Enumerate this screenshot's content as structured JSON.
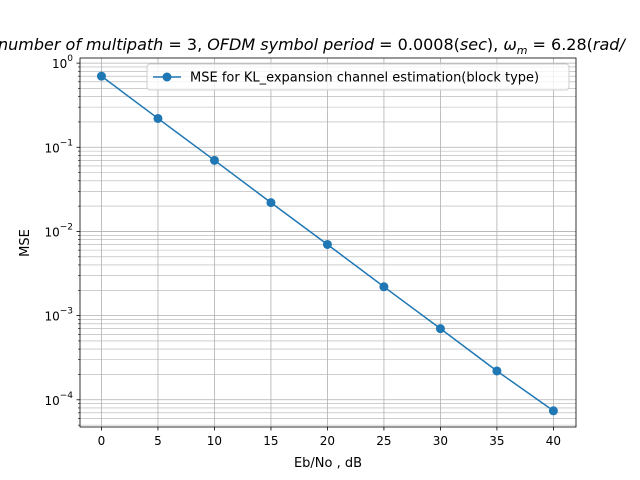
{
  "chart_data": {
    "type": "line",
    "title_parts": {
      "p1": "number of multipath",
      "p2": " = 3, ",
      "p3": "OFDM symbol period",
      "p4": " = 0.0008(",
      "p5": "sec",
      "p6": "), ",
      "p7_omega": "ω",
      "p8_sub": "m",
      "p9": " = 6.28(",
      "p10": "rad",
      "p11": "/"
    },
    "xlabel": "Eb/No , dB",
    "ylabel": "MSE",
    "x_ticks": [
      "0",
      "5",
      "10",
      "15",
      "20",
      "25",
      "30",
      "35",
      "40"
    ],
    "y_ticks": [
      {
        "base": "10",
        "exp": "0"
      },
      {
        "base": "10",
        "exp": "−1"
      },
      {
        "base": "10",
        "exp": "−2"
      },
      {
        "base": "10",
        "exp": "−3"
      },
      {
        "base": "10",
        "exp": "−4"
      }
    ],
    "y_scale": "log",
    "xlim": [
      -1.9,
      42
    ],
    "ylim": [
      4.75e-05,
      1.15
    ],
    "grid": true,
    "legend_position": "top-right",
    "series": [
      {
        "name": "MSE for KL_expansion channel estimation(block type)",
        "color": "#1f77b4",
        "marker": "circle",
        "x": [
          0,
          5,
          10,
          15,
          20,
          25,
          30,
          35,
          40
        ],
        "y": [
          0.7,
          0.22,
          0.07,
          0.022,
          0.007,
          0.0022,
          0.0007,
          0.00022,
          7.4e-05
        ]
      }
    ]
  }
}
